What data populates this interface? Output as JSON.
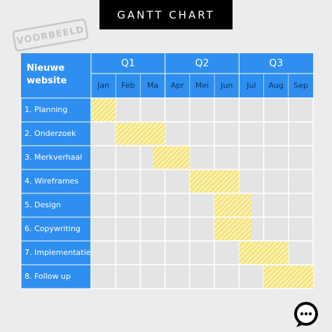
{
  "chart_data": {
    "type": "gantt",
    "title": "GANTT CHART",
    "stamp": "VOORBEELD",
    "corner_label": "Nieuwe website",
    "quarters": [
      "Q1",
      "Q2",
      "Q3"
    ],
    "months": [
      "Jan",
      "Feb",
      "Ma",
      "Apr",
      "Mei",
      "Jun",
      "Jul",
      "Aug",
      "Sep"
    ],
    "categories": [
      "1. Planning",
      "2. Onderzoek",
      "3. Merkverhaal",
      "4. Wireframes",
      "5. Design",
      "6. Copywriting",
      "7. Implementatie",
      "8. Follow up"
    ],
    "start": [
      0,
      1,
      2.5,
      4,
      5,
      5,
      6,
      7
    ],
    "end": [
      1,
      3,
      4,
      6,
      6.5,
      6.5,
      8,
      9
    ],
    "xlim": [
      0,
      9
    ],
    "color": "#f2df6b"
  }
}
